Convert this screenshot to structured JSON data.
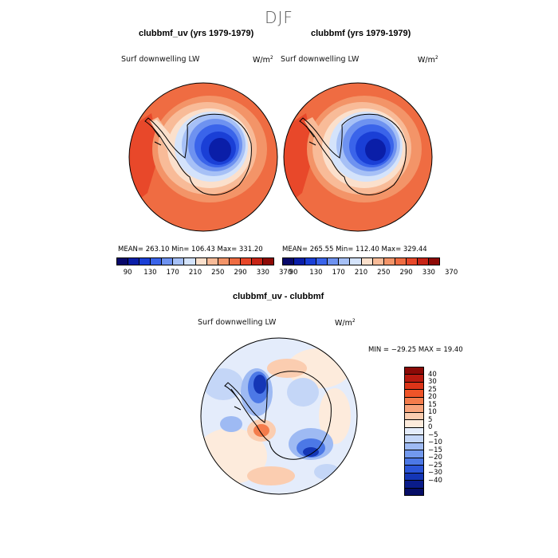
{
  "season": "DJF",
  "panels": [
    {
      "title": "clubbmf_uv (yrs 1979-1979)",
      "variable": "Surf downwelling LW",
      "unit": "W/m",
      "unit_sup": "2",
      "stats": "MEAN= 263.10   Min= 106.43   Max= 331.20"
    },
    {
      "title": "clubbmf (yrs 1979-1979)",
      "variable": "Surf downwelling LW",
      "unit": "W/m",
      "unit_sup": "2",
      "stats": "MEAN= 265.55   Min= 112.40   Max= 329.44"
    }
  ],
  "abs_colorbar": {
    "colors": [
      "#08086a",
      "#0a1ea8",
      "#1a3fd6",
      "#3a64ea",
      "#6e92f0",
      "#a6c0f6",
      "#d4e3fb",
      "#fbe0cc",
      "#f8bb98",
      "#f39468",
      "#ef6c42",
      "#e8482a",
      "#c72416",
      "#8e0a06"
    ],
    "labels": [
      "90",
      "130",
      "170",
      "210",
      "250",
      "290",
      "330",
      "370"
    ]
  },
  "diff_panel": {
    "title": "clubbmf_uv - clubbmf",
    "variable": "Surf downwelling LW",
    "unit": "W/m",
    "unit_sup": "2",
    "stats": "MIN = −29.25  MAX =  19.40"
  },
  "diff_colorbar": {
    "colors": [
      "#8b0a07",
      "#b81a10",
      "#dc3418",
      "#ef5428",
      "#f47c4c",
      "#f8a47c",
      "#fbcdb0",
      "#fdebdc",
      "#e4ecfb",
      "#c4d6f7",
      "#9ebaf3",
      "#7299ee",
      "#4c78e6",
      "#2b55d8",
      "#1436b6",
      "#0a1c8a",
      "#060d66"
    ],
    "labels": [
      "40",
      "30",
      "25",
      "20",
      "15",
      "10",
      "5",
      "0",
      "−5",
      "−10",
      "−15",
      "−20",
      "−25",
      "−30",
      "−40"
    ]
  }
}
